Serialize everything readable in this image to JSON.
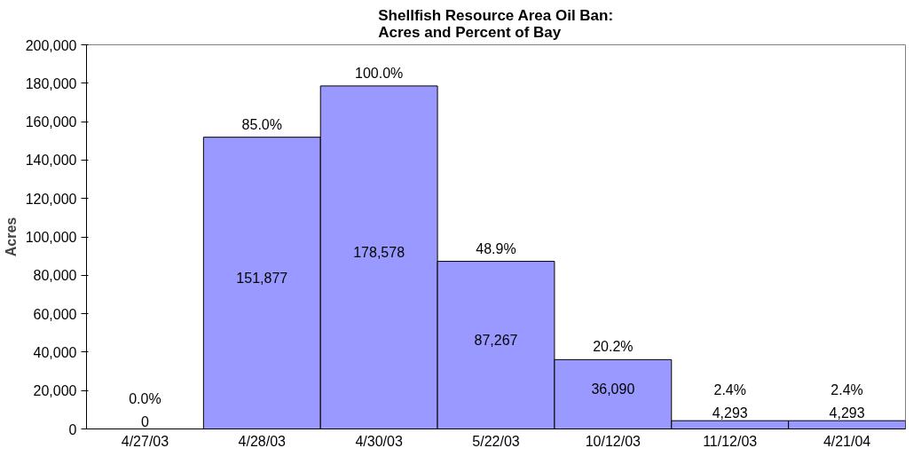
{
  "chart_data": {
    "type": "bar",
    "title": "Shellfish Resource Area Oil Ban:\nAcres and Percent of Bay",
    "ylabel": "Acres",
    "categories": [
      "4/27/03",
      "4/28/03",
      "4/30/03",
      "5/22/03",
      "10/12/03",
      "11/12/03",
      "4/21/04"
    ],
    "values": [
      0,
      151877,
      178578,
      87267,
      36090,
      4293,
      4293
    ],
    "color": "#9999ff",
    "value_labels": [
      "0",
      "151,877",
      "178,578",
      "87,267",
      "36,090",
      "4,293",
      "4,293"
    ],
    "annotations": [
      {
        "text": "0.0%",
        "x": "4/27/03",
        "y": 0
      },
      {
        "text": "85.0%",
        "x": "4/28/03",
        "y": 151877
      },
      {
        "text": "100.0%",
        "x": "4/30/03",
        "y": 178578
      },
      {
        "text": "48.9%",
        "x": "5/22/03",
        "y": 87267
      },
      {
        "text": "20.2%",
        "x": "10/12/03",
        "y": 36090
      },
      {
        "text": "2.4%",
        "x": "11/12/03",
        "y": 4293
      },
      {
        "text": "2.4%",
        "x": "4/21/04",
        "y": 4293
      }
    ],
    "ylim": [
      0,
      200000
    ],
    "yticks": [
      {
        "value": 0,
        "label": "0"
      },
      {
        "value": 20000,
        "label": "20,000"
      },
      {
        "value": 40000,
        "label": "40,000"
      },
      {
        "value": 60000,
        "label": "60,000"
      },
      {
        "value": 80000,
        "label": "80,000"
      },
      {
        "value": 100000,
        "label": "100,000"
      },
      {
        "value": 120000,
        "label": "120,000"
      },
      {
        "value": 140000,
        "label": "140,000"
      },
      {
        "value": 160000,
        "label": "160,000"
      },
      {
        "value": 180000,
        "label": "180,000"
      },
      {
        "value": 200000,
        "label": "200,000"
      }
    ],
    "grid": false
  }
}
